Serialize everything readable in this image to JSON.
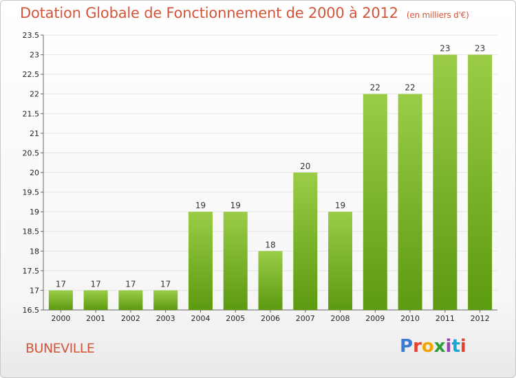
{
  "title": "Dotation Globale de Fonctionnement de 2000 à 2012",
  "subtitle": "(en milliers d'€)",
  "commune": "BUNEVILLE",
  "logo": {
    "text": "Proxiti",
    "colors": [
      "#3a7bd5",
      "#e8412c",
      "#f4a300",
      "#2e9e3a",
      "#9b3fb5",
      "#1aa5d9",
      "#e8412c"
    ]
  },
  "colors": {
    "bar_top": "#9acd45",
    "bar_bottom": "#5c9a10",
    "title": "#d2553a",
    "grid": "#e4e4e4"
  },
  "chart_data": {
    "type": "bar",
    "categories": [
      "2000",
      "2001",
      "2002",
      "2003",
      "2004",
      "2005",
      "2006",
      "2007",
      "2008",
      "2009",
      "2010",
      "2011",
      "2012"
    ],
    "values": [
      17,
      17,
      17,
      17,
      19,
      19,
      18,
      20,
      19,
      22,
      22,
      23,
      23
    ],
    "data_labels": [
      "17",
      "17",
      "17",
      "17",
      "19",
      "19",
      "18",
      "20",
      "19",
      "22",
      "22",
      "23",
      "23"
    ],
    "y_ticks": [
      16.5,
      17,
      17.5,
      18,
      18.5,
      19,
      19.5,
      20,
      20.5,
      21,
      21.5,
      22,
      22.5,
      23,
      23.5
    ],
    "y_tick_labels": [
      "16.5",
      "17",
      "17.5",
      "18",
      "18.5",
      "19",
      "19.5",
      "20",
      "20.5",
      "21",
      "21.5",
      "22",
      "22.5",
      "23",
      "23.5"
    ],
    "ylim": [
      16.5,
      23.5
    ],
    "grid": true,
    "legend": "none",
    "xlabel": "",
    "ylabel": ""
  }
}
